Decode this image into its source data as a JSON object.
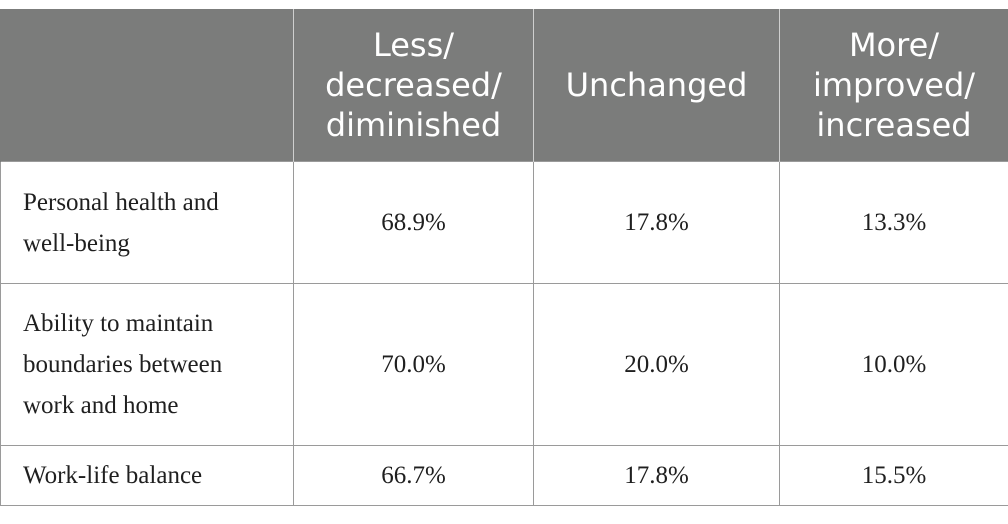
{
  "table": {
    "headers": [
      "",
      "Less/\ndecreased/\ndiminished",
      "Unchanged",
      "More/\nimproved/\nincreased"
    ],
    "rows": [
      {
        "label": "Personal health and\nwell-being",
        "values": [
          "68.9%",
          "17.8%",
          "13.3%"
        ]
      },
      {
        "label": "Ability to maintain\nboundaries between\nwork and home",
        "values": [
          "70.0%",
          "20.0%",
          "10.0%"
        ]
      },
      {
        "label": "Work-life balance",
        "values": [
          "66.7%",
          "17.8%",
          "15.5%"
        ]
      }
    ]
  }
}
